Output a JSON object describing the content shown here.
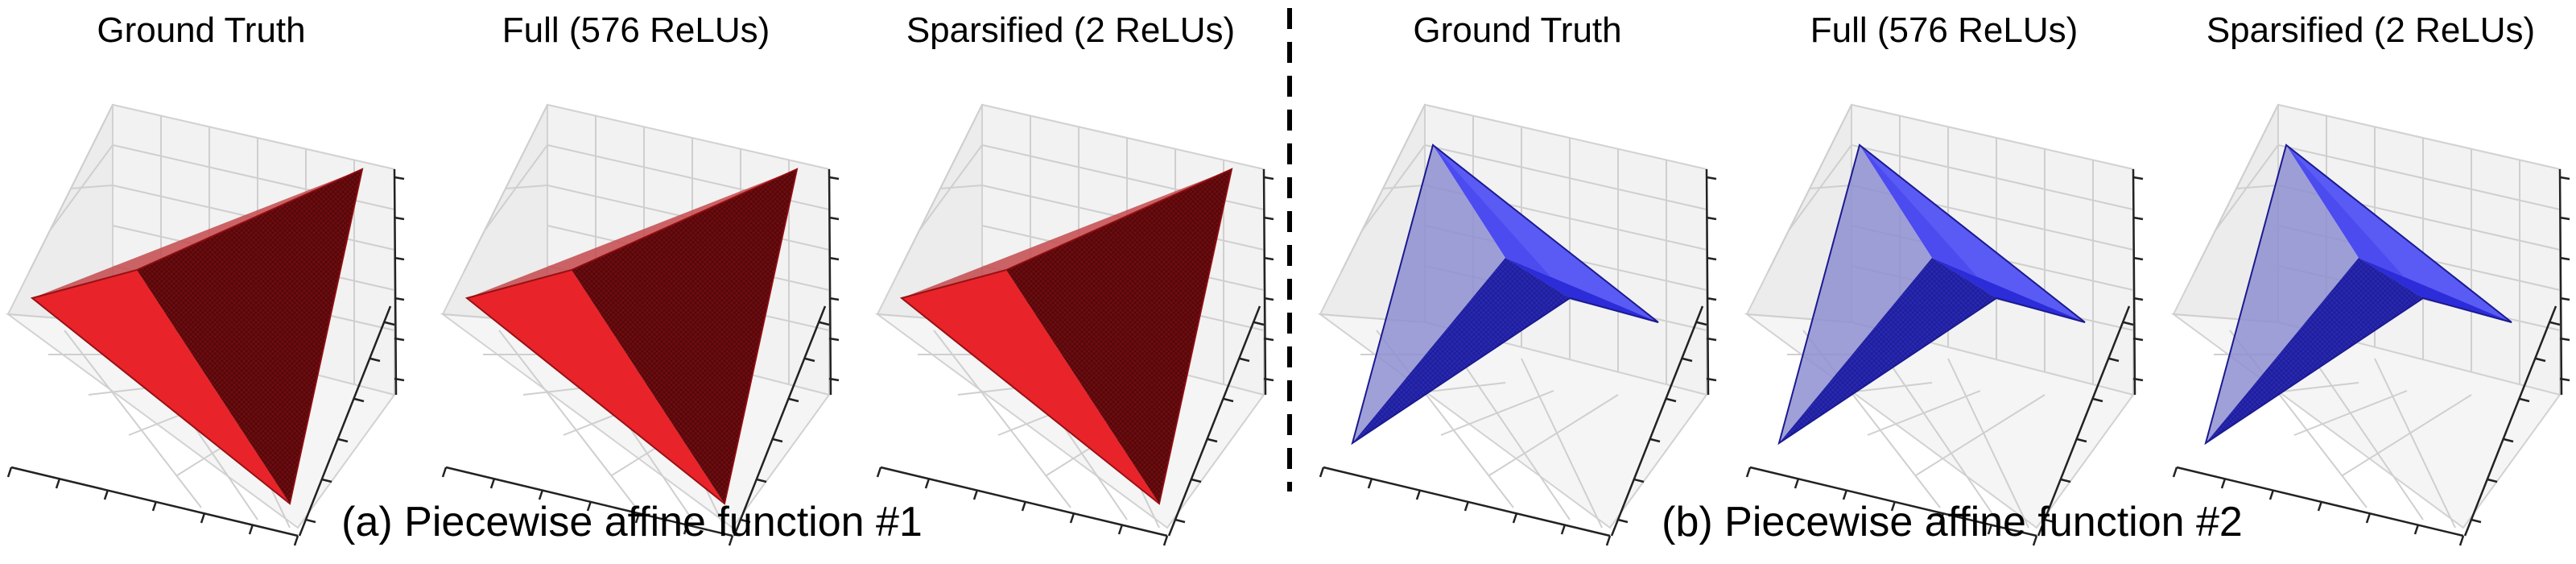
{
  "figure": {
    "group_a": {
      "caption": "(a) Piecewise affine function #1",
      "accent_color": "#e8242a",
      "panels": [
        {
          "title": "Ground Truth"
        },
        {
          "title": "Full (576 ReLUs)"
        },
        {
          "title": "Sparsified (2 ReLUs)"
        }
      ]
    },
    "group_b": {
      "caption": "(b) Piecewise affine function #2",
      "accent_color": "#2020e8",
      "panels": [
        {
          "title": "Ground Truth"
        },
        {
          "title": "Full (576 ReLUs)"
        },
        {
          "title": "Sparsified (2 ReLUs)"
        }
      ]
    }
  }
}
